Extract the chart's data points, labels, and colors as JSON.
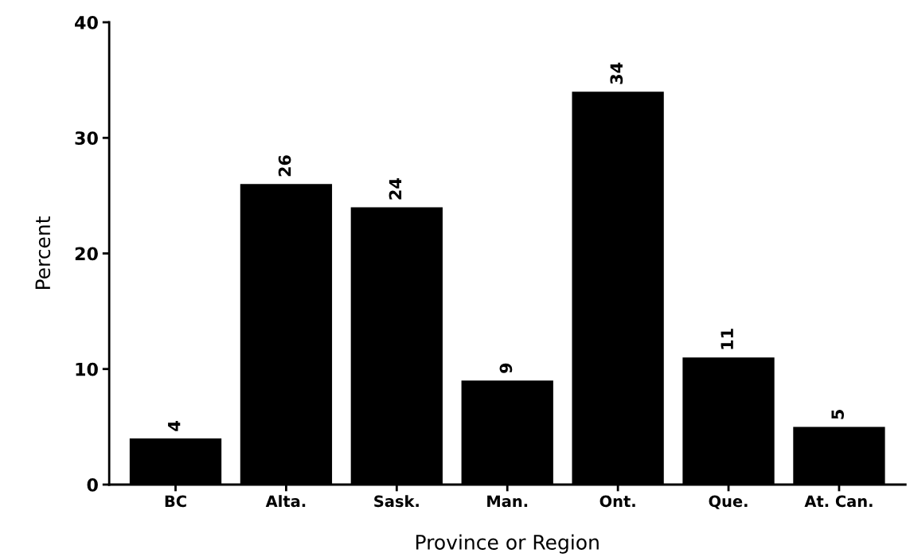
{
  "chart_data": {
    "type": "bar",
    "xlabel": "Province or Region",
    "ylabel": "Percent",
    "categories": [
      "BC",
      "Alta.",
      "Sask.",
      "Man.",
      "Ont.",
      "Que.",
      "At. Can."
    ],
    "values": [
      4,
      26,
      24,
      9,
      34,
      11,
      5
    ],
    "color": "#000000",
    "ylim": [
      0,
      40
    ],
    "yticks": [
      0,
      10,
      20,
      30,
      40
    ],
    "grid": false,
    "data_labels": true
  }
}
